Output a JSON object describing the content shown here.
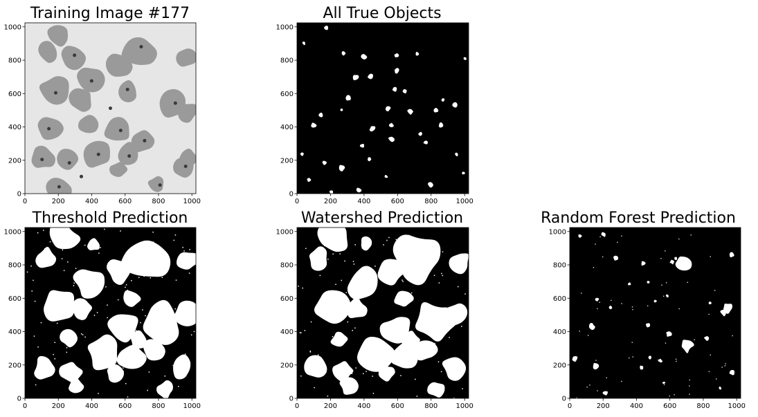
{
  "figure": {
    "panels": [
      {
        "id": "training-image",
        "title": "Training Image #177",
        "kind": "photo"
      },
      {
        "id": "true-objects",
        "title": "All True Objects",
        "kind": "mask-sparse"
      },
      {
        "id": "threshold-prediction",
        "title": "Threshold Prediction",
        "kind": "mask-dense"
      },
      {
        "id": "watershed-prediction",
        "title": "Watershed Prediction",
        "kind": "mask-dense"
      },
      {
        "id": "random-forest-prediction",
        "title": "Random Forest Prediction",
        "kind": "mask-mixed"
      }
    ],
    "axis": {
      "x_ticks": [
        "0",
        "200",
        "400",
        "600",
        "800",
        "1000"
      ],
      "y_ticks": [
        "0",
        "200",
        "400",
        "600",
        "800",
        "1000"
      ],
      "range": [
        0,
        1024
      ]
    },
    "colors": {
      "mask_background": "#000000",
      "mask_foreground": "#ffffff",
      "photo_background": "#e6e6e6",
      "cell": "#9a9a9a",
      "nucleus": "#3a3a3a"
    }
  }
}
